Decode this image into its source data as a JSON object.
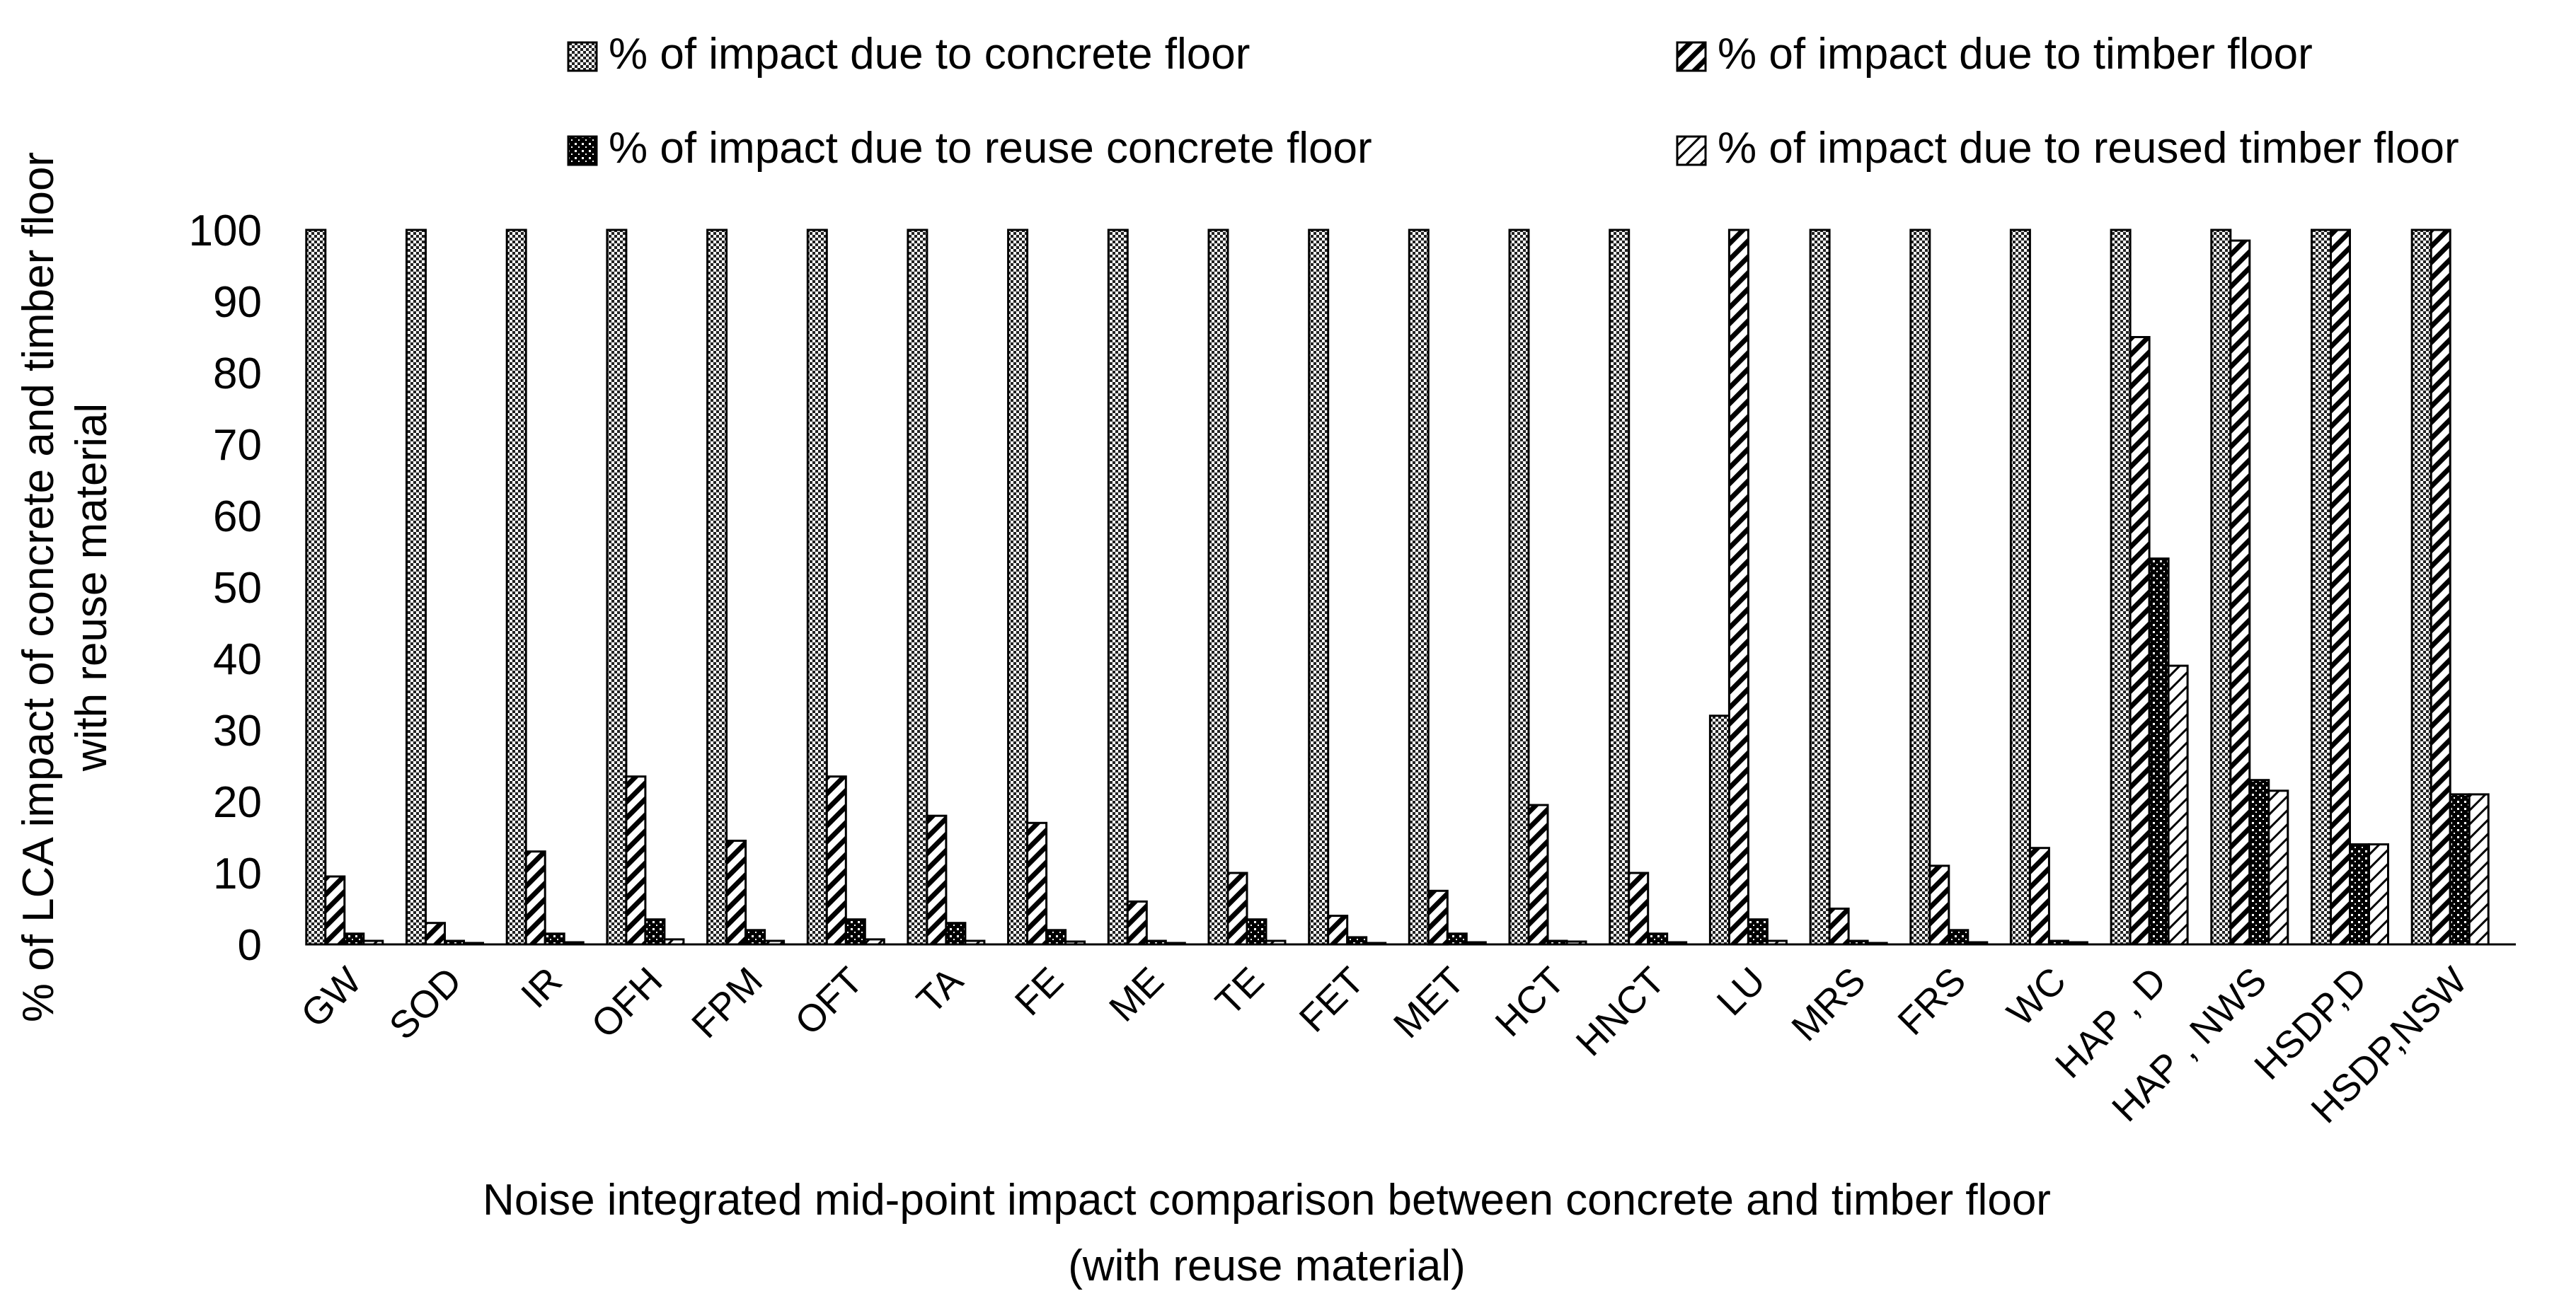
{
  "chart_data": {
    "type": "bar",
    "title": "",
    "xlabel_line1": "Noise integrated mid-point impact comparison between concrete and timber floor",
    "xlabel_line2": "(with reuse material)",
    "ylabel_line1": "% of LCA impact of concrete and timber floor",
    "ylabel_line2": "with reuse material",
    "ylim": [
      0,
      100
    ],
    "yticks": [
      0,
      10,
      20,
      30,
      40,
      50,
      60,
      70,
      80,
      90,
      100
    ],
    "legend_position": "top",
    "categories": [
      "GW",
      "SOD",
      "IR",
      "OFH",
      "FPM",
      "OFT",
      "TA",
      "FE",
      "ME",
      "TE",
      "FET",
      "MET",
      "HCT",
      "HNCT",
      "LU",
      "MRS",
      "FRS",
      "WC",
      "HAP , D",
      "HAP , NWS",
      "HSDP,D",
      "HSDP,NSW"
    ],
    "series": [
      {
        "name": "% of impact due to concrete floor",
        "pattern": "checker",
        "values": [
          100,
          100,
          100,
          100,
          100,
          100,
          100,
          100,
          100,
          100,
          100,
          100,
          100,
          100,
          32,
          100,
          100,
          100,
          100,
          100,
          100,
          100
        ]
      },
      {
        "name": "% of impact due to timber floor",
        "pattern": "diagonal",
        "values": [
          9.5,
          3,
          13,
          23.5,
          14.5,
          23.5,
          18,
          17,
          6,
          10,
          4,
          7.5,
          19.5,
          10,
          100,
          5,
          11,
          13.5,
          85,
          98.5,
          100,
          100
        ]
      },
      {
        "name": "% of impact due to reuse concrete floor",
        "pattern": "dots",
        "values": [
          1.5,
          0.5,
          1.5,
          3.5,
          2,
          3.5,
          3,
          2,
          0.5,
          3.5,
          1,
          1.5,
          0.5,
          1.5,
          3.5,
          0.5,
          2,
          0.5,
          54,
          23,
          14,
          21
        ]
      },
      {
        "name": "% of impact due to reused timber floor",
        "pattern": "diagonal-light",
        "values": [
          0.5,
          0.2,
          0.3,
          0.7,
          0.5,
          0.7,
          0.5,
          0.4,
          0.2,
          0.5,
          0.2,
          0.3,
          0.4,
          0.3,
          0.5,
          0.2,
          0.3,
          0.3,
          39,
          21.5,
          14,
          21
        ]
      }
    ]
  }
}
